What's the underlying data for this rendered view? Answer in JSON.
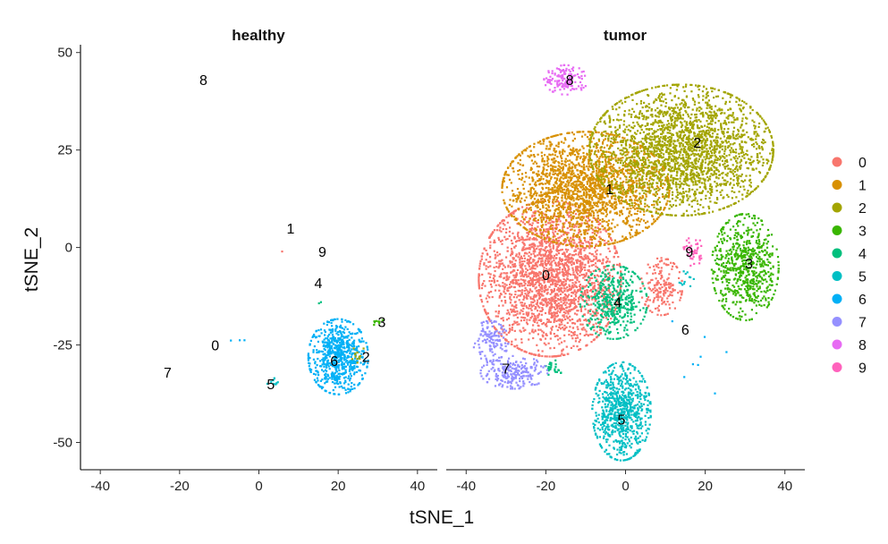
{
  "chart_data": {
    "type": "scatter",
    "facets": [
      "healthy",
      "tumor"
    ],
    "xlabel": "tSNE_1",
    "ylabel": "tSNE_2",
    "xlim": [
      -45,
      45
    ],
    "ylim": [
      -57,
      52
    ],
    "xticks": [
      -40,
      -20,
      0,
      20,
      40
    ],
    "yticks": [
      -50,
      -25,
      0,
      25,
      50
    ],
    "legend_position": "right",
    "clusters": [
      {
        "id": "0",
        "color": "#F8766D"
      },
      {
        "id": "1",
        "color": "#D89000"
      },
      {
        "id": "2",
        "color": "#A3A500"
      },
      {
        "id": "3",
        "color": "#39B600"
      },
      {
        "id": "4",
        "color": "#00BF7D"
      },
      {
        "id": "5",
        "color": "#00BFC4"
      },
      {
        "id": "6",
        "color": "#00B0F6"
      },
      {
        "id": "7",
        "color": "#9590FF"
      },
      {
        "id": "8",
        "color": "#E76BF3"
      },
      {
        "id": "9",
        "color": "#FF62BC"
      }
    ],
    "cluster_labels": {
      "healthy": [
        {
          "id": "0",
          "x": -11,
          "y": -25
        },
        {
          "id": "1",
          "x": 8,
          "y": 5
        },
        {
          "id": "2",
          "x": 27,
          "y": -28
        },
        {
          "id": "3",
          "x": 31,
          "y": -19
        },
        {
          "id": "4",
          "x": 15,
          "y": -9
        },
        {
          "id": "5",
          "x": 3,
          "y": -35
        },
        {
          "id": "6",
          "x": 19,
          "y": -29
        },
        {
          "id": "7",
          "x": -23,
          "y": -32
        },
        {
          "id": "8",
          "x": -14,
          "y": 43
        },
        {
          "id": "9",
          "x": 16,
          "y": -1
        }
      ],
      "tumor": [
        {
          "id": "0",
          "x": -20,
          "y": -7
        },
        {
          "id": "1",
          "x": -4,
          "y": 15
        },
        {
          "id": "2",
          "x": 18,
          "y": 27
        },
        {
          "id": "3",
          "x": 31,
          "y": -4
        },
        {
          "id": "4",
          "x": -2,
          "y": -14
        },
        {
          "id": "5",
          "x": -1,
          "y": -44
        },
        {
          "id": "6",
          "x": 15,
          "y": -21
        },
        {
          "id": "7",
          "x": -30,
          "y": -31
        },
        {
          "id": "8",
          "x": -14,
          "y": 43
        },
        {
          "id": "9",
          "x": 16,
          "y": -1
        }
      ]
    },
    "point_groups": {
      "healthy": [
        {
          "id": "6",
          "cx": 20,
          "cy": -28,
          "sx": 3.6,
          "sy": 4.6,
          "n": 650
        },
        {
          "id": "2",
          "cx": 25,
          "cy": -27,
          "sx": 1.2,
          "sy": 1.2,
          "n": 12
        },
        {
          "id": "3",
          "cx": 30,
          "cy": -19,
          "sx": 0.8,
          "sy": 0.5,
          "n": 8
        },
        {
          "id": "5",
          "cx": 4,
          "cy": -35,
          "sx": 1.0,
          "sy": 0.8,
          "n": 10
        },
        {
          "id": "4",
          "cx": 15,
          "cy": -14,
          "sx": 0.5,
          "sy": 0.5,
          "n": 2
        },
        {
          "id": "0",
          "cx": 6,
          "cy": -1,
          "sx": 0.3,
          "sy": 0.3,
          "n": 1
        },
        {
          "id": "6",
          "cx": -5,
          "cy": -24,
          "sx": 1.0,
          "sy": 1.0,
          "n": 3
        }
      ],
      "tumor": [
        {
          "id": "0",
          "cx": -19,
          "cy": -8,
          "sx": 8.5,
          "sy": 9.5,
          "n": 2300
        },
        {
          "id": "0",
          "cx": 9,
          "cy": -10,
          "sx": 2.5,
          "sy": 3.5,
          "n": 180
        },
        {
          "id": "1",
          "cx": -10,
          "cy": 15,
          "sx": 10.0,
          "sy": 7.0,
          "n": 2000
        },
        {
          "id": "2",
          "cx": 14,
          "cy": 25,
          "sx": 11.0,
          "sy": 8.0,
          "n": 2300
        },
        {
          "id": "3",
          "cx": 30,
          "cy": -5,
          "sx": 4.0,
          "sy": 6.5,
          "n": 650
        },
        {
          "id": "4",
          "cx": -3,
          "cy": -14,
          "sx": 4.0,
          "sy": 4.5,
          "n": 420
        },
        {
          "id": "4",
          "cx": -18,
          "cy": -31,
          "sx": 1.0,
          "sy": 1.0,
          "n": 25
        },
        {
          "id": "5",
          "cx": -1,
          "cy": -42,
          "sx": 3.5,
          "sy": 6.0,
          "n": 750
        },
        {
          "id": "7",
          "cx": -34,
          "cy": -24,
          "sx": 2.2,
          "sy": 2.5,
          "n": 130
        },
        {
          "id": "7",
          "cx": -28,
          "cy": -32,
          "sx": 4.0,
          "sy": 2.0,
          "n": 220
        },
        {
          "id": "8",
          "cx": -15,
          "cy": 43,
          "sx": 2.6,
          "sy": 1.8,
          "n": 150
        },
        {
          "id": "9",
          "cx": 17,
          "cy": -1,
          "sx": 1.2,
          "sy": 1.8,
          "n": 45
        },
        {
          "id": "5",
          "cx": 15,
          "cy": -8,
          "sx": 1.0,
          "sy": 1.2,
          "n": 12
        },
        {
          "id": "6",
          "cx": 18,
          "cy": -28,
          "sx": 6.0,
          "sy": 5.0,
          "n": 8
        }
      ]
    }
  }
}
